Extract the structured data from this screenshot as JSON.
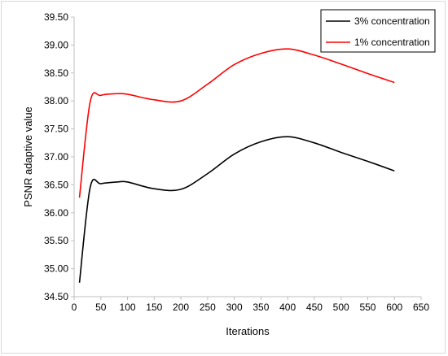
{
  "chart_data": {
    "type": "line",
    "title": "",
    "xlabel": "Iterations",
    "ylabel": "PSNR adaptive value",
    "xlim": [
      0,
      650
    ],
    "ylim": [
      34.5,
      39.5
    ],
    "x_ticks": [
      0,
      50,
      100,
      150,
      200,
      250,
      300,
      350,
      400,
      450,
      500,
      550,
      600,
      650
    ],
    "x_tick_labels": [
      "0",
      "50",
      "100",
      "150",
      "200",
      "250",
      "300",
      "350",
      "400",
      "450",
      "500",
      "550",
      "600",
      "650"
    ],
    "y_ticks": [
      34.5,
      35.0,
      35.5,
      36.0,
      36.5,
      37.0,
      37.5,
      38.0,
      38.5,
      39.0,
      39.5
    ],
    "y_tick_labels": [
      "34.50",
      "35.00",
      "35.50",
      "36.00",
      "36.50",
      "37.00",
      "37.50",
      "38.00",
      "38.50",
      "39.00",
      "39.50"
    ],
    "grid": false,
    "legend_position": "top-right",
    "series": [
      {
        "name": "3% concentration",
        "color": "#000000",
        "x": [
          10,
          30,
          50,
          80,
          100,
          150,
          200,
          250,
          300,
          350,
          400,
          450,
          500,
          550,
          600
        ],
        "y": [
          34.75,
          36.45,
          36.52,
          36.55,
          36.55,
          36.43,
          36.42,
          36.7,
          37.05,
          37.27,
          37.36,
          37.25,
          37.08,
          36.92,
          36.75
        ]
      },
      {
        "name": "1% concentration",
        "color": "#ff0000",
        "x": [
          10,
          30,
          50,
          80,
          100,
          150,
          200,
          250,
          300,
          350,
          400,
          450,
          500,
          550,
          600
        ],
        "y": [
          36.27,
          37.98,
          38.1,
          38.13,
          38.12,
          38.02,
          38.0,
          38.3,
          38.65,
          38.85,
          38.93,
          38.82,
          38.66,
          38.49,
          38.33
        ]
      }
    ]
  }
}
